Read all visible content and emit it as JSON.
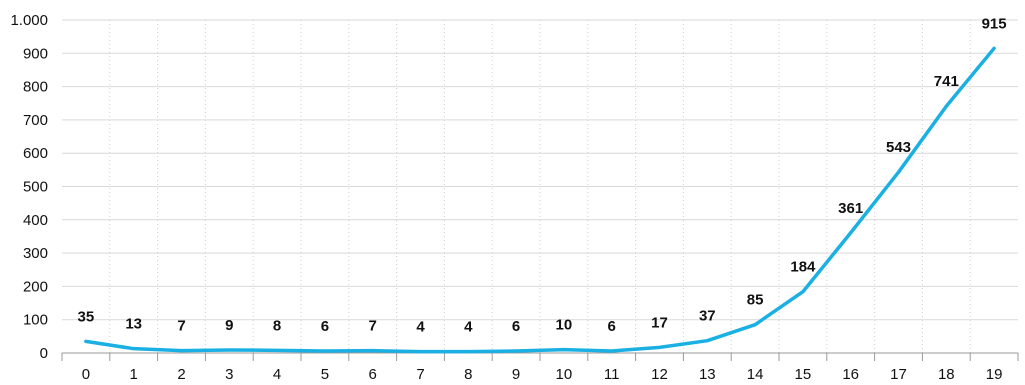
{
  "chart_data": {
    "type": "line",
    "x": [
      "0",
      "1",
      "2",
      "3",
      "4",
      "5",
      "6",
      "7",
      "8",
      "9",
      "10",
      "11",
      "12",
      "13",
      "14",
      "15",
      "16",
      "17",
      "18",
      "19"
    ],
    "series": [
      {
        "values": [
          35,
          13,
          7,
          9,
          8,
          6,
          7,
          4,
          4,
          6,
          10,
          6,
          17,
          37,
          85,
          184,
          361,
          543,
          741,
          915
        ],
        "data_labels": [
          "35",
          "13",
          "7",
          "9",
          "8",
          "6",
          "7",
          "4",
          "4",
          "6",
          "10",
          "6",
          "17",
          "37",
          "85",
          "184",
          "361",
          "543",
          "741",
          "915"
        ],
        "color": "#1ab0e3"
      }
    ],
    "ylim": [
      0,
      1000
    ],
    "yticks": [
      0,
      100,
      200,
      300,
      400,
      500,
      600,
      700,
      800,
      900,
      1000
    ],
    "ytick_labels": [
      "0",
      "100",
      "200",
      "300",
      "400",
      "500",
      "600",
      "700",
      "800",
      "900",
      "1.000"
    ],
    "grid": true,
    "title": "",
    "xlabel": "",
    "ylabel": ""
  }
}
